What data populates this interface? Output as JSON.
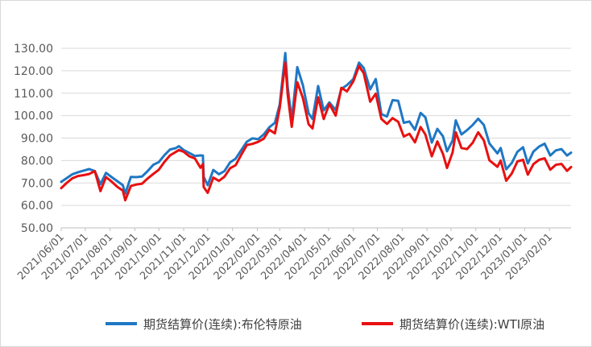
{
  "chart_data": {
    "type": "line",
    "title": "",
    "xlabel": "",
    "ylabel": "",
    "ylim": [
      50,
      130
    ],
    "xlim": [
      "2021-06-01",
      "2023-02-28"
    ],
    "y_ticks": [
      "130.00",
      "120.00",
      "110.00",
      "100.00",
      "90.00",
      "80.00",
      "70.00",
      "60.00",
      "50.00"
    ],
    "x_ticks": [
      "2021/06/01",
      "2021/07/01",
      "2021/08/01",
      "2021/09/01",
      "2021/10/01",
      "2021/11/01",
      "2021/12/01",
      "2022/01/01",
      "2022/02/01",
      "2022/03/01",
      "2022/04/01",
      "2022/05/01",
      "2022/06/01",
      "2022/07/01",
      "2022/08/01",
      "2022/09/01",
      "2022/10/01",
      "2022/11/01",
      "2022/12/01",
      "2023/01/01",
      "2023/02/01"
    ],
    "grid": "horizontal",
    "legend": "bottom",
    "series": [
      {
        "name": "期货结算价(连续):布伦特原油",
        "color": "#1f77c4",
        "points": [
          [
            "2021-06-01",
            70.5
          ],
          [
            "2021-06-08",
            72.2
          ],
          [
            "2021-06-15",
            73.9
          ],
          [
            "2021-06-22",
            74.8
          ],
          [
            "2021-06-29",
            75.5
          ],
          [
            "2021-07-06",
            76.2
          ],
          [
            "2021-07-13",
            75.3
          ],
          [
            "2021-07-20",
            69.4
          ],
          [
            "2021-07-27",
            74.5
          ],
          [
            "2021-08-03",
            72.6
          ],
          [
            "2021-08-10",
            70.8
          ],
          [
            "2021-08-17",
            69.0
          ],
          [
            "2021-08-20",
            65.2
          ],
          [
            "2021-08-27",
            72.7
          ],
          [
            "2021-09-03",
            72.6
          ],
          [
            "2021-09-10",
            72.9
          ],
          [
            "2021-09-17",
            75.3
          ],
          [
            "2021-09-24",
            78.1
          ],
          [
            "2021-10-01",
            79.3
          ],
          [
            "2021-10-08",
            82.4
          ],
          [
            "2021-10-15",
            84.9
          ],
          [
            "2021-10-22",
            85.5
          ],
          [
            "2021-10-26",
            86.4
          ],
          [
            "2021-11-01",
            84.7
          ],
          [
            "2021-11-08",
            83.4
          ],
          [
            "2021-11-15",
            82.0
          ],
          [
            "2021-11-22",
            82.3
          ],
          [
            "2021-11-25",
            82.2
          ],
          [
            "2021-11-26",
            72.7
          ],
          [
            "2021-12-01",
            69.0
          ],
          [
            "2021-12-08",
            75.8
          ],
          [
            "2021-12-15",
            73.9
          ],
          [
            "2021-12-22",
            75.3
          ],
          [
            "2021-12-29",
            79.2
          ],
          [
            "2022-01-05",
            80.8
          ],
          [
            "2022-01-12",
            84.7
          ],
          [
            "2022-01-19",
            88.4
          ],
          [
            "2022-01-26",
            89.9
          ],
          [
            "2022-02-02",
            89.5
          ],
          [
            "2022-02-09",
            91.6
          ],
          [
            "2022-02-16",
            94.8
          ],
          [
            "2022-02-23",
            96.8
          ],
          [
            "2022-03-01",
            105.0
          ],
          [
            "2022-03-08",
            127.9
          ],
          [
            "2022-03-11",
            112.7
          ],
          [
            "2022-03-16",
            98.0
          ],
          [
            "2022-03-23",
            121.6
          ],
          [
            "2022-03-30",
            113.5
          ],
          [
            "2022-04-06",
            101.1
          ],
          [
            "2022-04-11",
            98.5
          ],
          [
            "2022-04-18",
            113.2
          ],
          [
            "2022-04-25",
            102.3
          ],
          [
            "2022-05-02",
            105.9
          ],
          [
            "2022-05-10",
            102.5
          ],
          [
            "2022-05-17",
            111.9
          ],
          [
            "2022-05-24",
            113.6
          ],
          [
            "2022-06-01",
            116.3
          ],
          [
            "2022-06-08",
            123.6
          ],
          [
            "2022-06-14",
            121.2
          ],
          [
            "2022-06-22",
            111.7
          ],
          [
            "2022-06-29",
            116.3
          ],
          [
            "2022-07-06",
            100.7
          ],
          [
            "2022-07-13",
            99.6
          ],
          [
            "2022-07-20",
            106.9
          ],
          [
            "2022-07-27",
            106.6
          ],
          [
            "2022-08-03",
            96.8
          ],
          [
            "2022-08-10",
            97.4
          ],
          [
            "2022-08-17",
            93.7
          ],
          [
            "2022-08-24",
            101.2
          ],
          [
            "2022-08-30",
            99.3
          ],
          [
            "2022-09-07",
            88.0
          ],
          [
            "2022-09-14",
            94.1
          ],
          [
            "2022-09-21",
            90.8
          ],
          [
            "2022-09-26",
            84.1
          ],
          [
            "2022-10-03",
            88.9
          ],
          [
            "2022-10-07",
            97.9
          ],
          [
            "2022-10-14",
            91.6
          ],
          [
            "2022-10-21",
            93.5
          ],
          [
            "2022-10-28",
            95.8
          ],
          [
            "2022-11-04",
            98.6
          ],
          [
            "2022-11-11",
            95.9
          ],
          [
            "2022-11-18",
            87.6
          ],
          [
            "2022-11-28",
            83.2
          ],
          [
            "2022-12-02",
            85.6
          ],
          [
            "2022-12-09",
            76.1
          ],
          [
            "2022-12-16",
            79.0
          ],
          [
            "2022-12-23",
            83.9
          ],
          [
            "2022-12-30",
            85.9
          ],
          [
            "2023-01-05",
            78.7
          ],
          [
            "2023-01-12",
            84.0
          ],
          [
            "2023-01-19",
            86.2
          ],
          [
            "2023-01-26",
            87.5
          ],
          [
            "2023-02-02",
            82.2
          ],
          [
            "2023-02-09",
            84.5
          ],
          [
            "2023-02-16",
            85.1
          ],
          [
            "2023-02-23",
            82.2
          ],
          [
            "2023-02-28",
            83.5
          ]
        ]
      },
      {
        "name": "期货结算价(连续):WTI原油",
        "color": "#e81010",
        "points": [
          [
            "2021-06-01",
            67.7
          ],
          [
            "2021-06-08",
            70.1
          ],
          [
            "2021-06-15",
            72.1
          ],
          [
            "2021-06-22",
            73.1
          ],
          [
            "2021-06-29",
            73.5
          ],
          [
            "2021-07-06",
            74.0
          ],
          [
            "2021-07-13",
            75.3
          ],
          [
            "2021-07-20",
            66.4
          ],
          [
            "2021-07-27",
            72.6
          ],
          [
            "2021-08-03",
            70.6
          ],
          [
            "2021-08-10",
            68.3
          ],
          [
            "2021-08-17",
            66.6
          ],
          [
            "2021-08-20",
            62.3
          ],
          [
            "2021-08-27",
            68.7
          ],
          [
            "2021-09-03",
            69.3
          ],
          [
            "2021-09-10",
            69.7
          ],
          [
            "2021-09-17",
            72.0
          ],
          [
            "2021-09-24",
            74.0
          ],
          [
            "2021-10-01",
            75.9
          ],
          [
            "2021-10-08",
            79.4
          ],
          [
            "2021-10-15",
            82.3
          ],
          [
            "2021-10-22",
            83.8
          ],
          [
            "2021-10-26",
            84.7
          ],
          [
            "2021-11-01",
            83.9
          ],
          [
            "2021-11-08",
            81.9
          ],
          [
            "2021-11-15",
            80.9
          ],
          [
            "2021-11-22",
            76.8
          ],
          [
            "2021-11-25",
            78.4
          ],
          [
            "2021-11-26",
            68.2
          ],
          [
            "2021-12-01",
            65.6
          ],
          [
            "2021-12-08",
            72.4
          ],
          [
            "2021-12-15",
            70.9
          ],
          [
            "2021-12-22",
            72.8
          ],
          [
            "2021-12-29",
            76.6
          ],
          [
            "2022-01-05",
            77.9
          ],
          [
            "2022-01-12",
            82.6
          ],
          [
            "2022-01-19",
            86.9
          ],
          [
            "2022-01-26",
            87.4
          ],
          [
            "2022-02-02",
            88.3
          ],
          [
            "2022-02-09",
            89.7
          ],
          [
            "2022-02-16",
            93.7
          ],
          [
            "2022-02-23",
            92.1
          ],
          [
            "2022-03-01",
            103.4
          ],
          [
            "2022-03-08",
            123.7
          ],
          [
            "2022-03-11",
            109.3
          ],
          [
            "2022-03-16",
            95.0
          ],
          [
            "2022-03-23",
            114.9
          ],
          [
            "2022-03-30",
            107.8
          ],
          [
            "2022-04-06",
            96.2
          ],
          [
            "2022-04-11",
            94.3
          ],
          [
            "2022-04-18",
            108.2
          ],
          [
            "2022-04-25",
            98.5
          ],
          [
            "2022-05-02",
            105.2
          ],
          [
            "2022-05-10",
            100.0
          ],
          [
            "2022-05-17",
            112.4
          ],
          [
            "2022-05-24",
            110.8
          ],
          [
            "2022-06-01",
            115.3
          ],
          [
            "2022-06-08",
            122.1
          ],
          [
            "2022-06-14",
            118.9
          ],
          [
            "2022-06-22",
            106.2
          ],
          [
            "2022-06-29",
            109.8
          ],
          [
            "2022-07-06",
            98.5
          ],
          [
            "2022-07-13",
            96.3
          ],
          [
            "2022-07-20",
            98.9
          ],
          [
            "2022-07-27",
            97.3
          ],
          [
            "2022-08-03",
            90.7
          ],
          [
            "2022-08-10",
            91.9
          ],
          [
            "2022-08-17",
            88.1
          ],
          [
            "2022-08-24",
            94.9
          ],
          [
            "2022-08-30",
            91.6
          ],
          [
            "2022-09-07",
            81.9
          ],
          [
            "2022-09-14",
            88.5
          ],
          [
            "2022-09-21",
            82.9
          ],
          [
            "2022-09-26",
            76.7
          ],
          [
            "2022-10-03",
            83.6
          ],
          [
            "2022-10-07",
            92.6
          ],
          [
            "2022-10-14",
            85.6
          ],
          [
            "2022-10-21",
            85.1
          ],
          [
            "2022-10-28",
            87.9
          ],
          [
            "2022-11-04",
            92.6
          ],
          [
            "2022-11-11",
            89.0
          ],
          [
            "2022-11-18",
            80.1
          ],
          [
            "2022-11-28",
            77.2
          ],
          [
            "2022-12-02",
            80.0
          ],
          [
            "2022-12-09",
            71.0
          ],
          [
            "2022-12-16",
            74.3
          ],
          [
            "2022-12-23",
            79.6
          ],
          [
            "2022-12-30",
            80.3
          ],
          [
            "2023-01-05",
            73.7
          ],
          [
            "2023-01-12",
            78.4
          ],
          [
            "2023-01-19",
            80.3
          ],
          [
            "2023-01-26",
            81.0
          ],
          [
            "2023-02-02",
            75.9
          ],
          [
            "2023-02-09",
            78.1
          ],
          [
            "2023-02-16",
            78.5
          ],
          [
            "2023-02-23",
            75.4
          ],
          [
            "2023-02-28",
            77.1
          ]
        ]
      }
    ]
  }
}
